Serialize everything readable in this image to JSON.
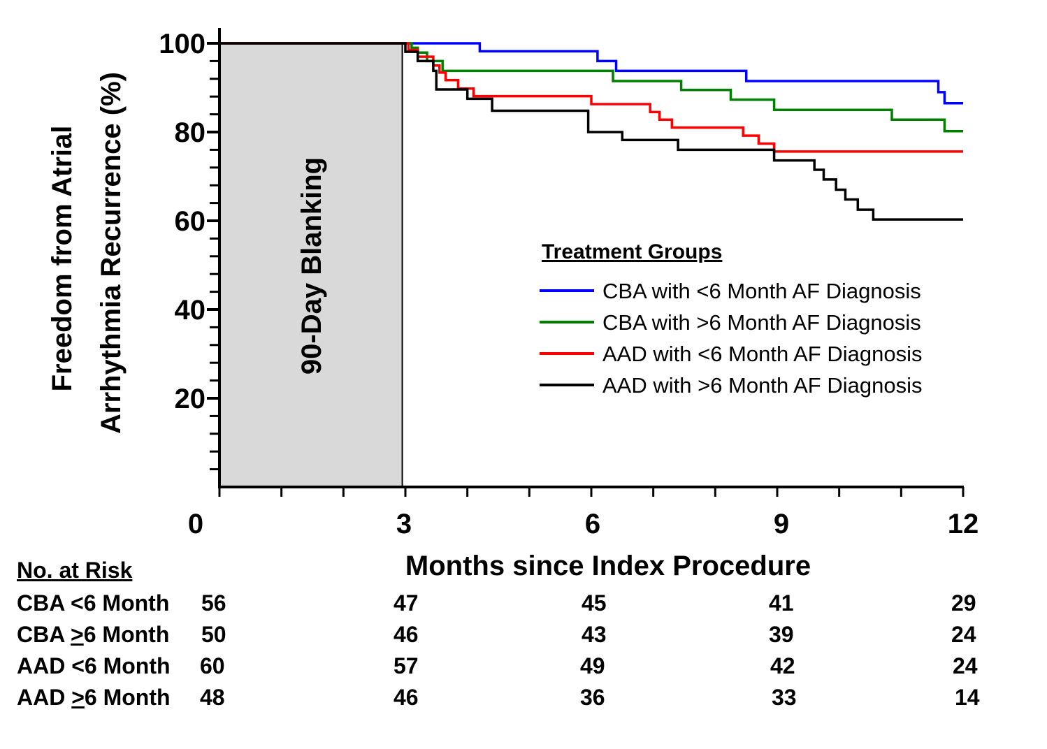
{
  "chart_data": {
    "type": "line",
    "step": true,
    "ylabel_line1": "Freedom from Atrial",
    "ylabel_line2": "Arrhythmia Recurrence (%)",
    "xlabel": "Months since Index Procedure",
    "xlim": [
      0,
      12
    ],
    "ylim": [
      0,
      100
    ],
    "x_ticks": [
      "0",
      "3",
      "6",
      "9",
      "12"
    ],
    "y_ticks": [
      "100",
      "80",
      "60",
      "40",
      "20"
    ],
    "blanking": {
      "label": "90-Day Blanking",
      "x_end": 2.95,
      "color": "#d9d9d9"
    },
    "legend": {
      "title": "Treatment Groups",
      "position": "center-right"
    },
    "series": [
      {
        "name": "CBA with <6 Month AF Diagnosis",
        "color": "#0000ff",
        "x": [
          0,
          4.2,
          4.2,
          6.1,
          6.1,
          6.4,
          6.4,
          8.5,
          8.5,
          11.6,
          11.6,
          11.7,
          11.7,
          12
        ],
        "y": [
          100,
          100,
          98.2,
          98.2,
          96,
          96,
          93.8,
          93.8,
          91.5,
          91.5,
          89,
          89,
          86.5,
          86.5
        ]
      },
      {
        "name": "CBA with >6 Month AF Diagnosis",
        "color": "#008000",
        "x": [
          0,
          3.1,
          3.1,
          3.2,
          3.2,
          3.35,
          3.35,
          3.6,
          3.6,
          6.35,
          6.35,
          7.45,
          7.45,
          8.25,
          8.25,
          8.95,
          8.95,
          10.85,
          10.85,
          11.7,
          11.7,
          12
        ],
        "y": [
          100,
          100,
          99,
          99,
          97.9,
          97.9,
          96,
          96,
          93.8,
          93.8,
          91.5,
          91.5,
          89.5,
          89.5,
          87.3,
          87.3,
          85,
          85,
          82.8,
          82.8,
          80.2,
          80.2
        ]
      },
      {
        "name": "AAD with <6 Month AF Diagnosis",
        "color": "#ff0000",
        "x": [
          0,
          3.05,
          3.05,
          3.2,
          3.2,
          3.45,
          3.45,
          3.55,
          3.55,
          3.65,
          3.65,
          3.85,
          3.85,
          4.1,
          4.1,
          6.0,
          6.0,
          6.95,
          6.95,
          7.1,
          7.1,
          7.3,
          7.3,
          8.3,
          8.3,
          8.45,
          8.45,
          8.7,
          8.7,
          8.95,
          8.95,
          9.75,
          9.75,
          12
        ],
        "y": [
          100,
          100,
          98.5,
          98.5,
          97,
          97,
          95,
          95,
          93.4,
          93.4,
          91.7,
          91.7,
          89.8,
          89.8,
          88.1,
          88.1,
          86.3,
          86.3,
          84.5,
          84.5,
          82.8,
          82.8,
          81,
          81,
          81,
          81,
          79.2,
          79.2,
          77.4,
          77.4,
          75.6,
          75.6,
          75.6,
          75.6
        ]
      },
      {
        "name": "AAD with >6 Month AF Diagnosis",
        "color": "#000000",
        "x": [
          0,
          3.0,
          3.0,
          3.2,
          3.2,
          3.45,
          3.45,
          3.5,
          3.5,
          4.0,
          4.0,
          4.4,
          4.4,
          5.95,
          5.95,
          6.5,
          6.5,
          7.4,
          7.4,
          8.95,
          8.95,
          9.6,
          9.6,
          9.75,
          9.75,
          9.95,
          9.95,
          10.1,
          10.1,
          10.3,
          10.3,
          10.55,
          10.55,
          10.7,
          10.7,
          12
        ],
        "y": [
          100,
          100,
          98.1,
          98.1,
          96,
          96,
          93.8,
          93.8,
          89.6,
          89.6,
          87.5,
          87.5,
          84.8,
          84.8,
          80,
          80,
          78.2,
          78.2,
          76,
          76,
          73.6,
          73.6,
          71.5,
          71.5,
          69.3,
          69.3,
          67,
          67,
          64.8,
          64.8,
          62.5,
          62.5,
          60.3,
          60.3,
          60.3,
          60.3
        ]
      }
    ]
  },
  "risk_table": {
    "title": "No. at Risk",
    "rows": [
      {
        "pre": "CBA <6 Month",
        "u": "",
        "post": "",
        "values": [
          "56",
          "47",
          "45",
          "41",
          "29"
        ]
      },
      {
        "pre": "CBA ",
        "u": ">",
        "post": "6 Month",
        "values": [
          "50",
          "46",
          "43",
          "39",
          "24"
        ]
      },
      {
        "pre": "AAD <6 Month",
        "u": "",
        "post": "",
        "values": [
          "60",
          "57",
          "49",
          "42",
          "24"
        ]
      },
      {
        "pre": "AAD ",
        "u": ">",
        "post": "6 Month",
        "values": [
          "48",
          "46",
          "36",
          "33",
          "14"
        ]
      }
    ]
  }
}
